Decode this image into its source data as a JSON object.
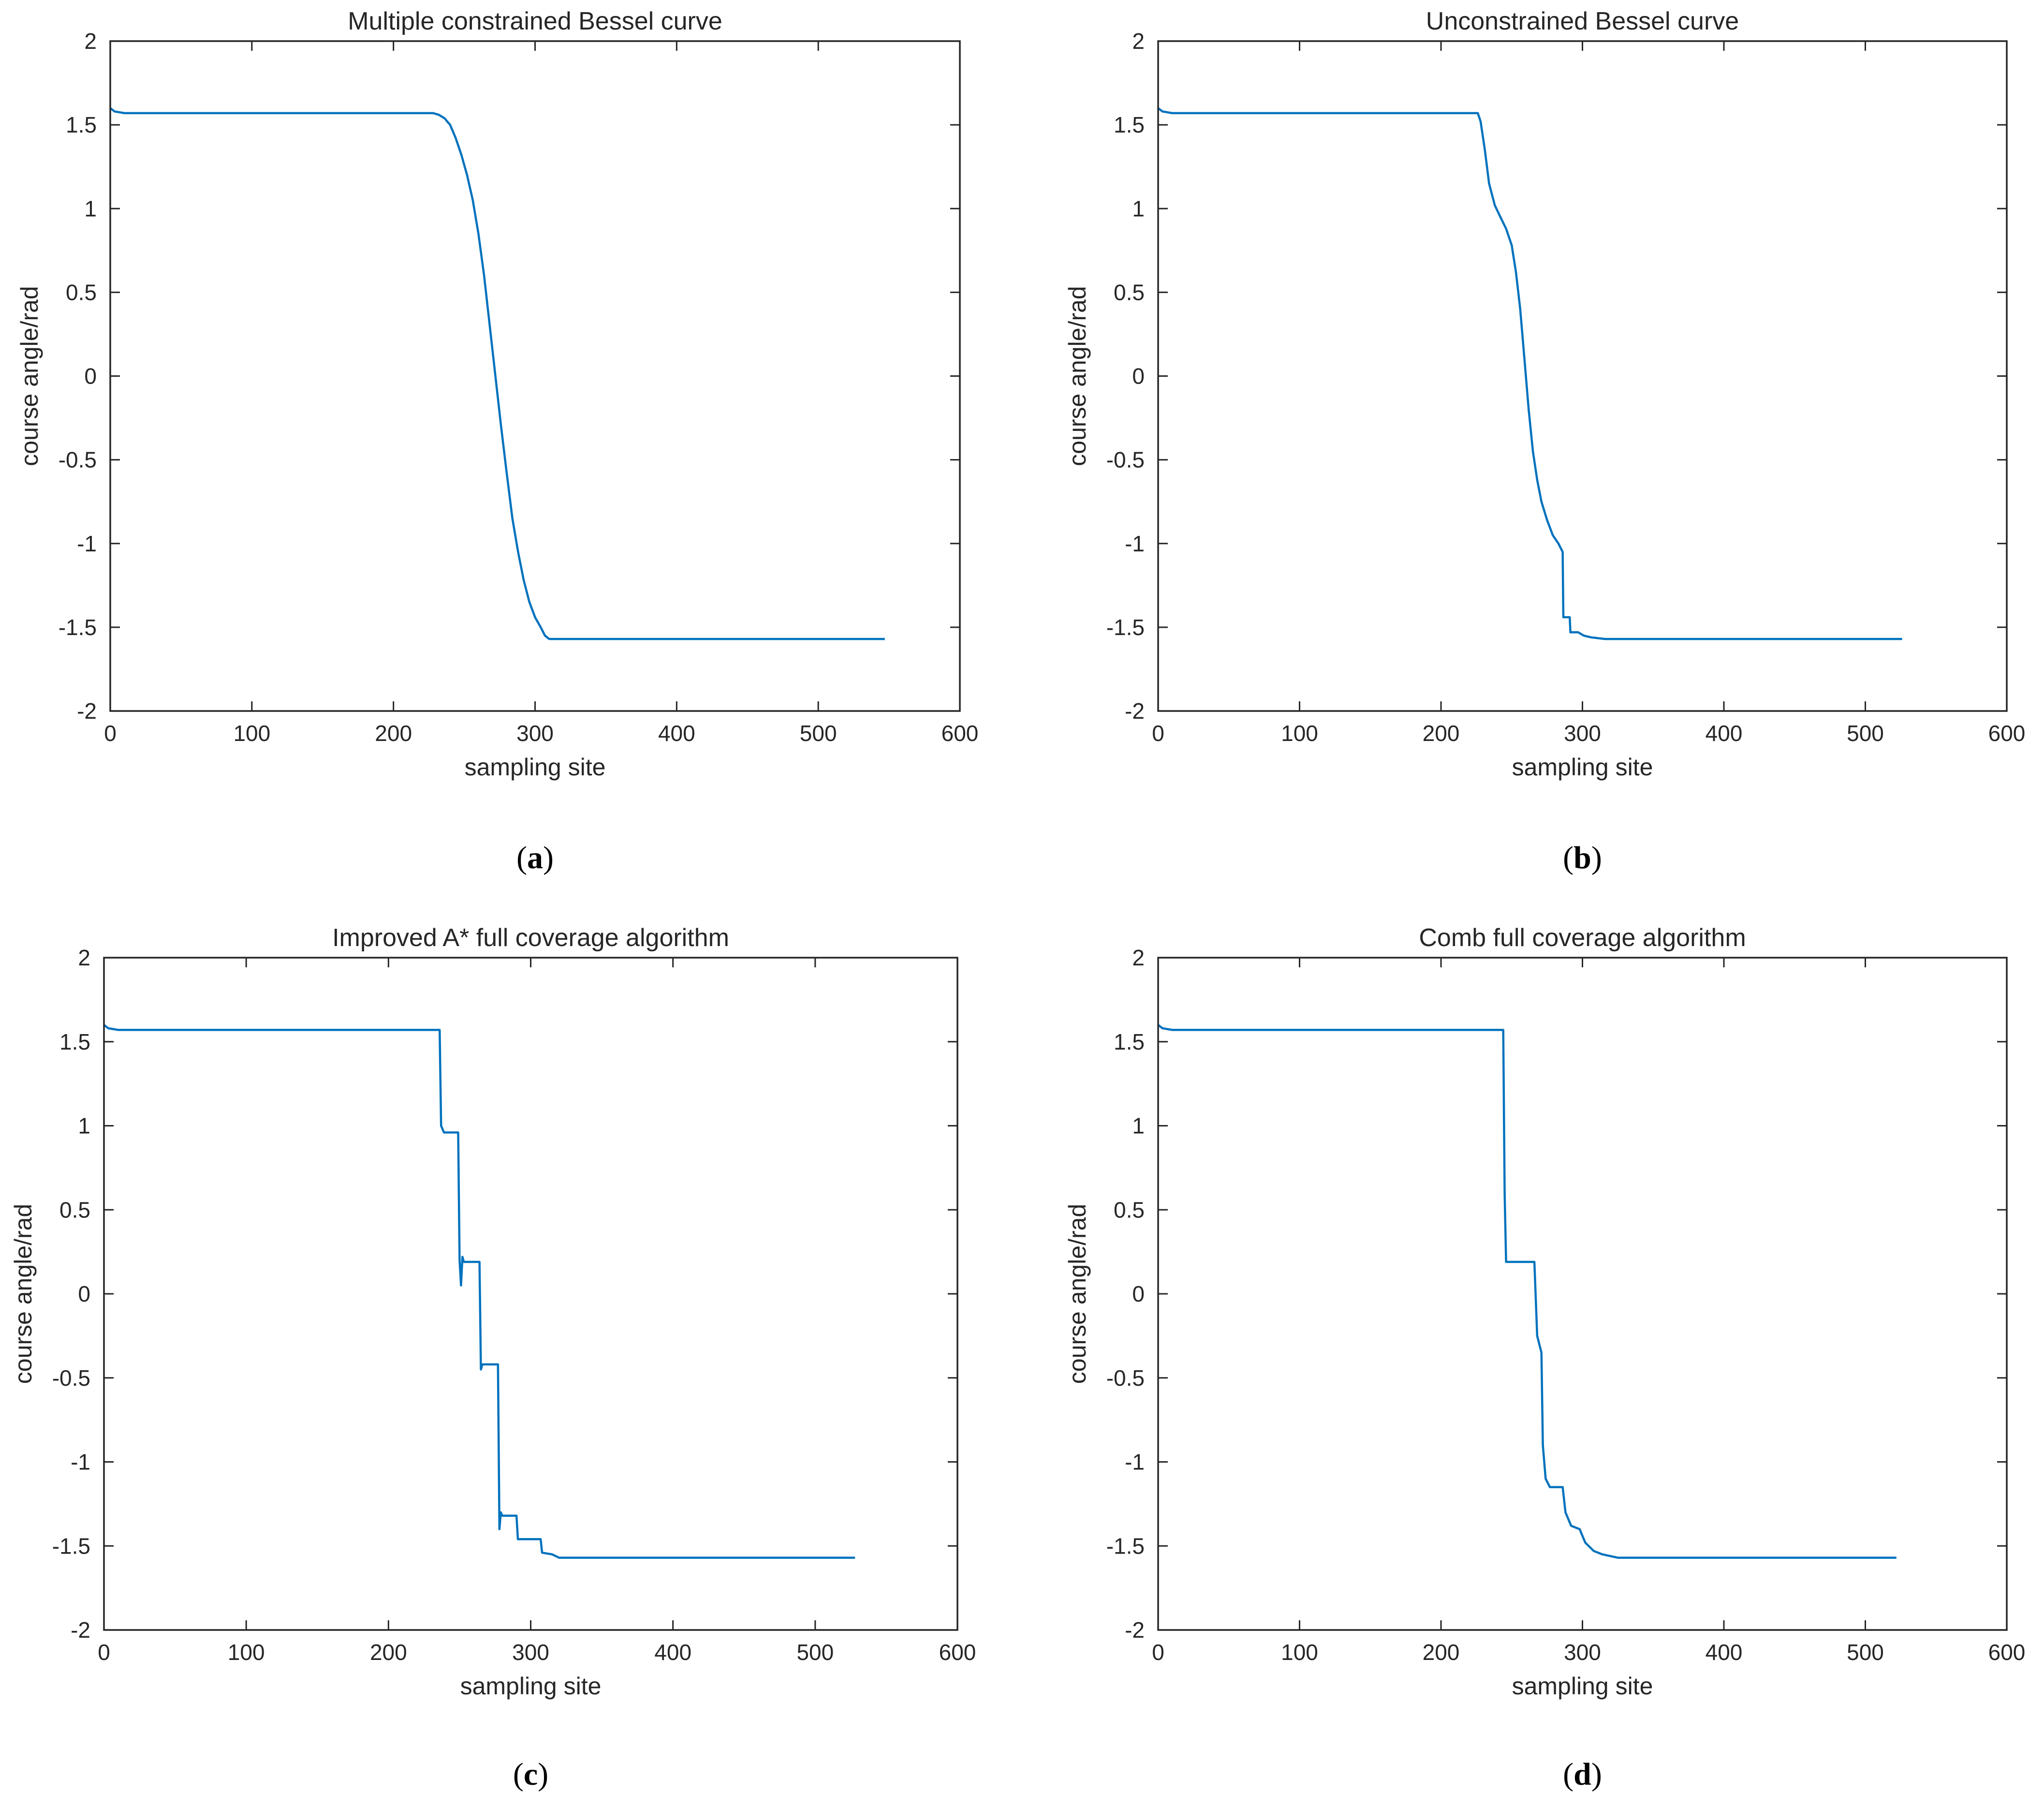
{
  "figure": {
    "line_color": "#0072BD",
    "axis_color": "#262626",
    "grid": false
  },
  "chart_data": [
    {
      "id": "a",
      "type": "line",
      "title": "Multiple constrained Bessel curve",
      "xlabel": "sampling site",
      "ylabel": "course angle/rad",
      "panel_label": "a",
      "xlim": [
        0,
        600
      ],
      "ylim": [
        -2,
        2
      ],
      "xticks": [
        0,
        100,
        200,
        300,
        400,
        500,
        600
      ],
      "yticks": [
        2,
        1.5,
        1,
        0.5,
        0,
        -0.5,
        -1,
        -1.5,
        -2
      ],
      "series": [
        {
          "name": "course angle",
          "points": [
            [
              0,
              1.6
            ],
            [
              3,
              1.58
            ],
            [
              10,
              1.57
            ],
            [
              228,
              1.57
            ],
            [
              232,
              1.56
            ],
            [
              236,
              1.54
            ],
            [
              240,
              1.5
            ],
            [
              244,
              1.42
            ],
            [
              248,
              1.32
            ],
            [
              252,
              1.2
            ],
            [
              256,
              1.05
            ],
            [
              260,
              0.85
            ],
            [
              264,
              0.6
            ],
            [
              268,
              0.3
            ],
            [
              272,
              0.0
            ],
            [
              276,
              -0.3
            ],
            [
              280,
              -0.58
            ],
            [
              284,
              -0.85
            ],
            [
              288,
              -1.05
            ],
            [
              292,
              -1.22
            ],
            [
              296,
              -1.35
            ],
            [
              300,
              -1.44
            ],
            [
              304,
              -1.5
            ],
            [
              307,
              -1.55
            ],
            [
              310,
              -1.57
            ],
            [
              320,
              -1.57
            ],
            [
              547,
              -1.57
            ]
          ]
        }
      ]
    },
    {
      "id": "b",
      "type": "line",
      "title": "Unconstrained Bessel curve",
      "xlabel": "sampling site",
      "ylabel": "course angle/rad",
      "panel_label": "b",
      "xlim": [
        0,
        600
      ],
      "ylim": [
        -2,
        2
      ],
      "xticks": [
        0,
        100,
        200,
        300,
        400,
        500,
        600
      ],
      "yticks": [
        2,
        1.5,
        1,
        0.5,
        0,
        -0.5,
        -1,
        -1.5,
        -2
      ],
      "series": [
        {
          "name": "course angle",
          "points": [
            [
              0,
              1.6
            ],
            [
              3,
              1.58
            ],
            [
              10,
              1.57
            ],
            [
              226,
              1.57
            ],
            [
              228,
              1.52
            ],
            [
              231,
              1.35
            ],
            [
              234,
              1.15
            ],
            [
              238,
              1.02
            ],
            [
              242,
              0.95
            ],
            [
              246,
              0.88
            ],
            [
              250,
              0.78
            ],
            [
              253,
              0.62
            ],
            [
              256,
              0.4
            ],
            [
              259,
              0.1
            ],
            [
              262,
              -0.2
            ],
            [
              265,
              -0.45
            ],
            [
              268,
              -0.62
            ],
            [
              271,
              -0.75
            ],
            [
              275,
              -0.86
            ],
            [
              279,
              -0.95
            ],
            [
              283,
              -1.0
            ],
            [
              286,
              -1.05
            ],
            [
              286.5,
              -1.44
            ],
            [
              291,
              -1.44
            ],
            [
              291.5,
              -1.53
            ],
            [
              297,
              -1.53
            ],
            [
              301,
              -1.55
            ],
            [
              306,
              -1.56
            ],
            [
              316,
              -1.57
            ],
            [
              526,
              -1.57
            ]
          ]
        }
      ]
    },
    {
      "id": "c",
      "type": "line",
      "title": "Improved A* full coverage algorithm",
      "xlabel": "sampling site",
      "ylabel": "course angle/rad",
      "panel_label": "c",
      "xlim": [
        0,
        600
      ],
      "ylim": [
        -2,
        2
      ],
      "xticks": [
        0,
        100,
        200,
        300,
        400,
        500,
        600
      ],
      "yticks": [
        2,
        1.5,
        1,
        0.5,
        0,
        -0.5,
        -1,
        -1.5,
        -2
      ],
      "series": [
        {
          "name": "course angle",
          "points": [
            [
              0,
              1.6
            ],
            [
              3,
              1.58
            ],
            [
              10,
              1.57
            ],
            [
              236,
              1.57
            ],
            [
              237,
              1.0
            ],
            [
              239,
              0.96
            ],
            [
              249,
              0.96
            ],
            [
              250,
              0.2
            ],
            [
              251,
              0.05
            ],
            [
              252,
              0.22
            ],
            [
              253,
              0.19
            ],
            [
              264,
              0.19
            ],
            [
              265,
              -0.45
            ],
            [
              266,
              -0.42
            ],
            [
              277,
              -0.42
            ],
            [
              278,
              -1.4
            ],
            [
              279,
              -1.3
            ],
            [
              280,
              -1.32
            ],
            [
              290,
              -1.32
            ],
            [
              291,
              -1.46
            ],
            [
              307,
              -1.46
            ],
            [
              308,
              -1.54
            ],
            [
              315,
              -1.55
            ],
            [
              320,
              -1.57
            ],
            [
              528,
              -1.57
            ]
          ]
        }
      ]
    },
    {
      "id": "d",
      "type": "line",
      "title": "Comb full coverage algorithm",
      "xlabel": "sampling site",
      "ylabel": "course angle/rad",
      "panel_label": "d",
      "xlim": [
        0,
        600
      ],
      "ylim": [
        -2,
        2
      ],
      "xticks": [
        0,
        100,
        200,
        300,
        400,
        500,
        600
      ],
      "yticks": [
        2,
        1.5,
        1,
        0.5,
        0,
        -0.5,
        -1,
        -1.5,
        -2
      ],
      "series": [
        {
          "name": "course angle",
          "points": [
            [
              0,
              1.6
            ],
            [
              3,
              1.58
            ],
            [
              10,
              1.57
            ],
            [
              244,
              1.57
            ],
            [
              245,
              0.6
            ],
            [
              246,
              0.19
            ],
            [
              266,
              0.19
            ],
            [
              268,
              -0.25
            ],
            [
              271,
              -0.35
            ],
            [
              272,
              -0.9
            ],
            [
              274,
              -1.1
            ],
            [
              277,
              -1.15
            ],
            [
              286,
              -1.15
            ],
            [
              288,
              -1.3
            ],
            [
              292,
              -1.38
            ],
            [
              298,
              -1.4
            ],
            [
              302,
              -1.48
            ],
            [
              308,
              -1.53
            ],
            [
              314,
              -1.55
            ],
            [
              325,
              -1.57
            ],
            [
              522,
              -1.57
            ]
          ]
        }
      ]
    }
  ]
}
